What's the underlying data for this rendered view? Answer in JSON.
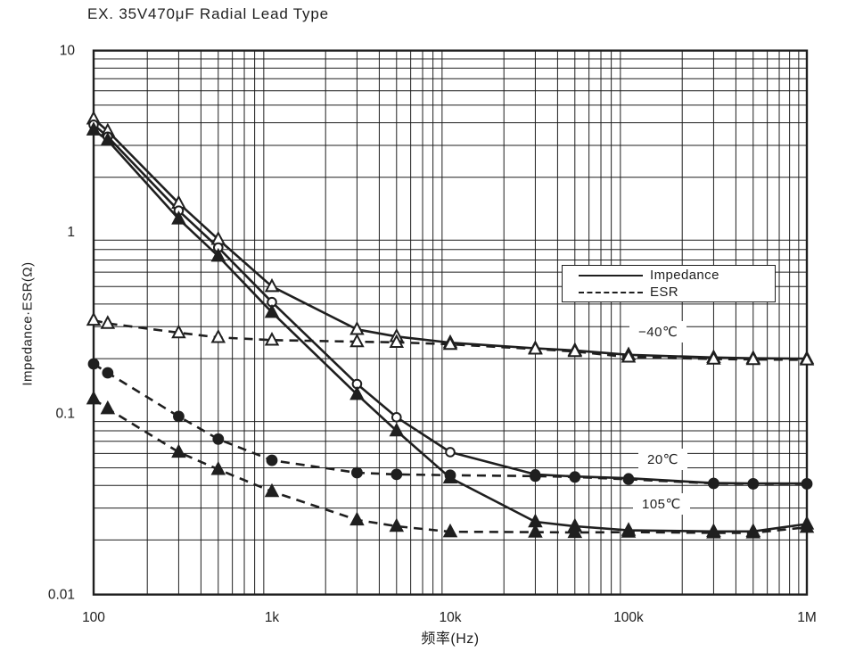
{
  "chart_data": {
    "type": "line",
    "title": "EX. 35V470μF Radial Lead Type",
    "xlabel": "频率(Hz)",
    "ylabel": "Impedance·ESR(Ω)",
    "x_scale": "log",
    "y_scale": "log",
    "xlim": [
      100,
      1000000
    ],
    "ylim": [
      0.01,
      10
    ],
    "grid": "both-log-minor",
    "ink_color": "#1f1f1f",
    "x_ticks": [
      {
        "value": 100,
        "label": "100"
      },
      {
        "value": 1000,
        "label": "1k"
      },
      {
        "value": 10000,
        "label": "10k"
      },
      {
        "value": 100000,
        "label": "100k"
      },
      {
        "value": 1000000,
        "label": "1M"
      }
    ],
    "y_ticks": [
      {
        "value": 10,
        "label": "10"
      },
      {
        "value": 1,
        "label": "1"
      },
      {
        "value": 0.1,
        "label": "0.1"
      },
      {
        "value": 0.01,
        "label": "0.01"
      }
    ],
    "legend": [
      {
        "label": "Impedance",
        "style": "solid"
      },
      {
        "label": "ESR",
        "style": "dashed"
      }
    ],
    "annotations": [
      {
        "label": "−40℃"
      },
      {
        "label": "20℃"
      },
      {
        "label": "105℃"
      }
    ],
    "x": [
      100,
      120,
      300,
      500,
      1000,
      3000,
      5000,
      10000,
      30000,
      50000,
      100000,
      300000,
      500000,
      1000000
    ],
    "series": [
      {
        "name": "Impedance −40℃",
        "style": "solid",
        "marker": "triangle-open",
        "values": [
          4.2,
          3.6,
          1.44,
          0.91,
          0.5,
          0.29,
          0.265,
          0.245,
          0.228,
          0.222,
          0.21,
          0.203,
          0.201,
          0.2
        ]
      },
      {
        "name": "Impedance 20℃",
        "style": "solid",
        "marker": "circle-open",
        "values": [
          3.9,
          3.35,
          1.31,
          0.82,
          0.41,
          0.145,
          0.095,
          0.061,
          0.046,
          0.0448,
          0.0438,
          0.0412,
          0.041,
          0.041
        ]
      },
      {
        "name": "Impedance 105℃",
        "style": "solid",
        "marker": "triangle-filled",
        "values": [
          3.65,
          3.2,
          1.18,
          0.735,
          0.36,
          0.127,
          0.08,
          0.044,
          0.0252,
          0.0238,
          0.0226,
          0.0223,
          0.0223,
          0.0245
        ]
      },
      {
        "name": "ESR −40℃",
        "style": "dashed",
        "marker": "triangle-open",
        "values": [
          0.326,
          0.313,
          0.278,
          0.262,
          0.253,
          0.248,
          0.246,
          0.24,
          0.226,
          0.219,
          0.204,
          0.199,
          0.198,
          0.197
        ]
      },
      {
        "name": "ESR 20℃",
        "style": "dashed",
        "marker": "circle-filled",
        "values": [
          0.187,
          0.167,
          0.096,
          0.072,
          0.055,
          0.047,
          0.046,
          0.0455,
          0.045,
          0.0445,
          0.0432,
          0.041,
          0.0408,
          0.0408
        ]
      },
      {
        "name": "ESR 105℃",
        "style": "dashed",
        "marker": "triangle-filled",
        "values": [
          0.12,
          0.106,
          0.061,
          0.049,
          0.037,
          0.0258,
          0.0238,
          0.0222,
          0.0221,
          0.022,
          0.0221,
          0.0219,
          0.0219,
          0.0235
        ]
      }
    ]
  }
}
